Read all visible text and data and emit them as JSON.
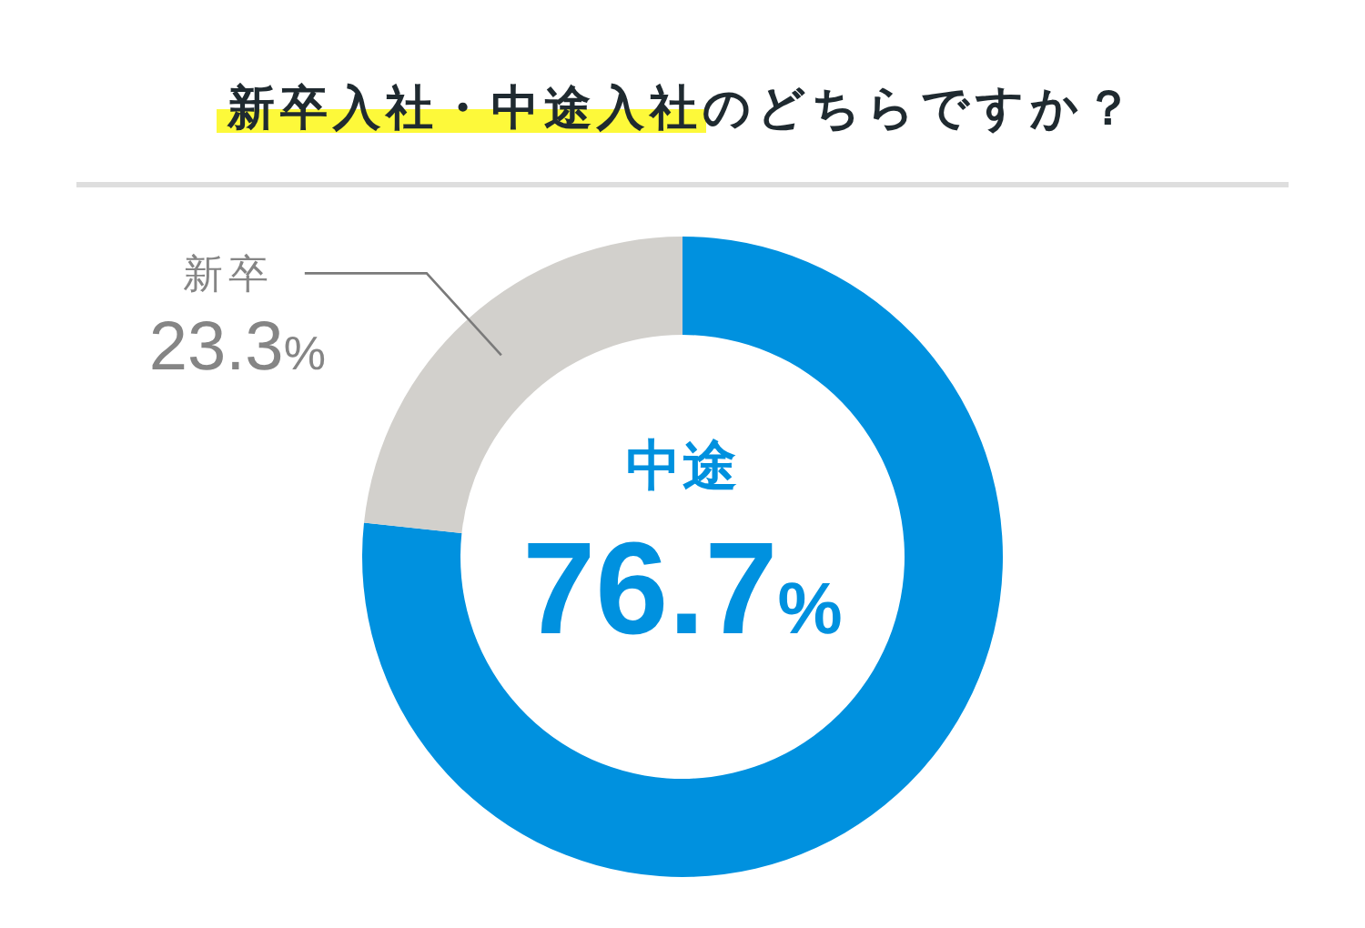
{
  "chart_data": {
    "type": "donut",
    "title": "新卒入社・中途入社のどちらですか？",
    "categories": [
      "中途",
      "新卒"
    ],
    "values": [
      76.7,
      23.3
    ],
    "colors": [
      "#0091df",
      "#d2d0cc"
    ],
    "value_labels": [
      "76.7%",
      "23.3%"
    ]
  }
}
